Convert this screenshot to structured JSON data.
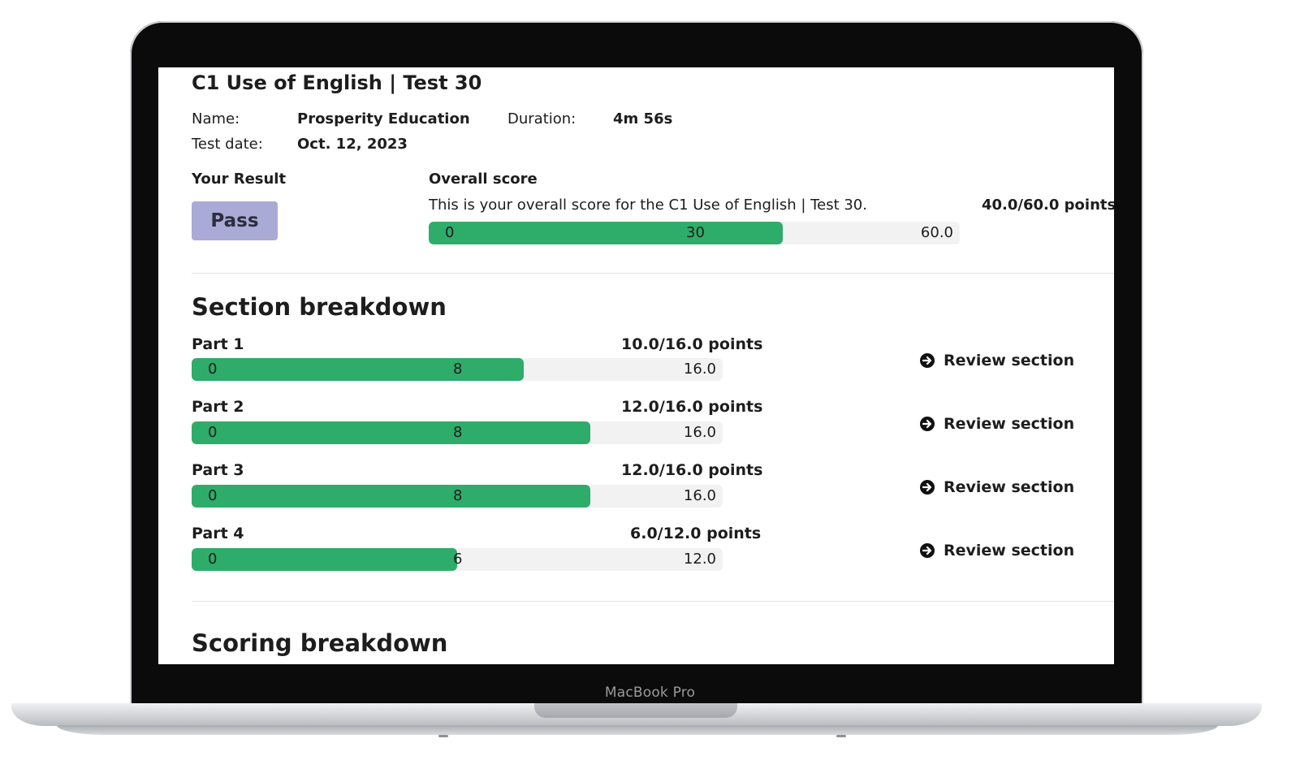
{
  "device": {
    "label": "MacBook Pro"
  },
  "report": {
    "title": "C1 Use of English | Test 30",
    "name_label": "Name:",
    "name_value": "Prosperity Education",
    "duration_label": "Duration:",
    "duration_value": "4m 56s",
    "date_label": "Test date:",
    "date_value": "Oct. 12, 2023",
    "result_label": "Your Result",
    "result_value": "Pass",
    "overall": {
      "heading": "Overall score",
      "description": "This is your overall score for the C1 Use of English | Test 30.",
      "points_text": "40.0/60.0 points",
      "min_label": "0",
      "mid_label": "30",
      "max_label": "60.0",
      "fraction": 0.6667
    }
  },
  "section_breakdown": {
    "heading": "Section breakdown",
    "review_label": "Review section",
    "parts": [
      {
        "label": "Part 1",
        "points_text": "10.0/16.0 points",
        "min_label": "0",
        "mid_label": "8",
        "max_label": "16.0",
        "fraction": 0.625
      },
      {
        "label": "Part 2",
        "points_text": "12.0/16.0 points",
        "min_label": "0",
        "mid_label": "8",
        "max_label": "16.0",
        "fraction": 0.75
      },
      {
        "label": "Part 3",
        "points_text": "12.0/16.0 points",
        "min_label": "0",
        "mid_label": "8",
        "max_label": "16.0",
        "fraction": 0.75
      },
      {
        "label": "Part 4",
        "points_text": "6.0/12.0 points",
        "min_label": "0",
        "mid_label": "6",
        "max_label": "12.0",
        "fraction": 0.5
      }
    ]
  },
  "scoring_breakdown": {
    "heading": "Scoring breakdown"
  },
  "colors": {
    "bar_fill": "#2eac6a",
    "bar_track": "#f2f2f2",
    "pass_badge": "#a9aad6"
  },
  "icons": {
    "review": "arrow-right-circle-icon"
  }
}
